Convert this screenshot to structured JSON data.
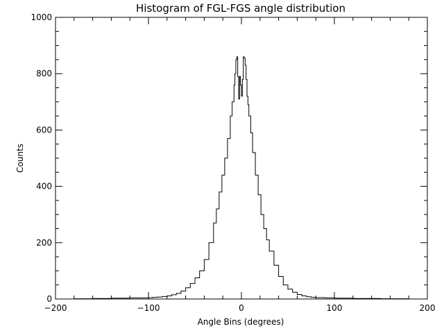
{
  "chart_data": {
    "type": "line",
    "title": "Histogram of FGL-FGS angle distribution",
    "xlabel": "Angle Bins (degrees)",
    "ylabel": "Counts",
    "xlim": [
      -200,
      200
    ],
    "ylim": [
      0,
      1000
    ],
    "xticks": [
      -200,
      -100,
      0,
      100,
      200
    ],
    "yticks": [
      0,
      200,
      400,
      600,
      800,
      1000
    ],
    "x_tick_labels": [
      "−200",
      "−100",
      "0",
      "100",
      "200"
    ],
    "y_tick_labels": [
      "0",
      "200",
      "400",
      "600",
      "800",
      "1000"
    ],
    "grid": false,
    "series": [
      {
        "x": [
          -180,
          -170,
          -160,
          -150,
          -140,
          -130,
          -120,
          -110,
          -100,
          -95,
          -90,
          -85,
          -80,
          -75,
          -70,
          -65,
          -60,
          -55,
          -50,
          -45,
          -40,
          -35,
          -30,
          -27,
          -24,
          -21,
          -18,
          -15,
          -12,
          -10,
          -8,
          -7,
          -6,
          -5,
          -4,
          -3,
          -2,
          -1,
          0,
          1,
          2,
          3,
          4,
          5,
          6,
          7,
          8,
          10,
          12,
          15,
          18,
          21,
          24,
          27,
          30,
          35,
          40,
          45,
          50,
          55,
          60,
          65,
          70,
          75,
          80,
          90,
          100,
          110,
          120,
          130,
          140,
          150,
          160,
          170,
          180
        ],
        "y": [
          1,
          1,
          2,
          2,
          3,
          3,
          4,
          4,
          5,
          6,
          7,
          9,
          11,
          15,
          20,
          28,
          40,
          55,
          75,
          100,
          140,
          200,
          270,
          320,
          380,
          440,
          500,
          570,
          650,
          700,
          760,
          800,
          850,
          860,
          790,
          710,
          790,
          760,
          720,
          780,
          860,
          855,
          830,
          780,
          720,
          690,
          650,
          590,
          520,
          440,
          370,
          300,
          250,
          210,
          170,
          120,
          80,
          50,
          35,
          24,
          16,
          11,
          8,
          6,
          5,
          4,
          3,
          3,
          2,
          2,
          2,
          1,
          1,
          1,
          1
        ]
      }
    ]
  }
}
